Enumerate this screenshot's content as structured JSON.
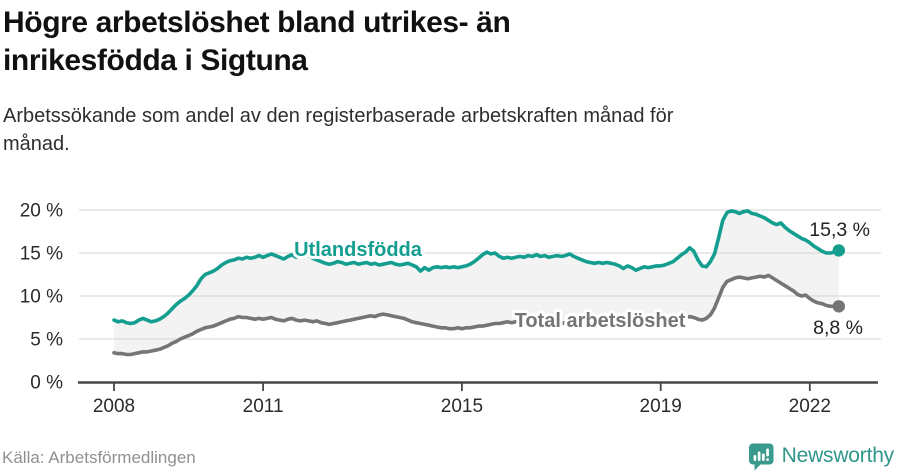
{
  "page": {
    "title": "Högre arbetslöshet bland utrikes- än inrikesfödda i Sigtuna",
    "title_lines": [
      "Högre arbetslöshet bland utrikes- än",
      "inrikesfödda i Sigtuna"
    ],
    "subtitle": "Arbetssökande som andel av den registerbaserade arbetskraften månad för månad.",
    "subtitle_lines": [
      "Arbetssökande som andel av den registerbaserade arbetskraften månad för",
      "månad."
    ],
    "source": "Källa: Arbetsförmedlingen",
    "brand": {
      "name": "Newsworthy",
      "icon": "newsworthy-bubble-barchart-icon",
      "color": "#2f968a"
    }
  },
  "chart_data": {
    "type": "line",
    "title": "Högre arbetslöshet bland utrikes- än inrikesfödda i Sigtuna",
    "subtitle": "Arbetssökande som andel av den registerbaserade arbetskraften månad för månad.",
    "source": "Källa: Arbetsförmedlingen",
    "x_unit": "monthly, decimal years",
    "x_start": 2008.0,
    "x_step": 0.08333,
    "xlim": [
      2007.3,
      2023.4
    ],
    "ylim": [
      0,
      21
    ],
    "grid": "horizontal",
    "xticks": [
      2008,
      2011,
      2015,
      2019,
      2022
    ],
    "xtick_labels": [
      "2008",
      "2011",
      "2015",
      "2019",
      "2022"
    ],
    "yticks": [
      0,
      5,
      10,
      15,
      20
    ],
    "ytick_labels": [
      "0 %",
      "5 %",
      "10 %",
      "15 %",
      "20 %"
    ],
    "band_fill_between_series": "#f3f3f3",
    "series": [
      {
        "name": "Utlandsfödda",
        "color": "#149e8f",
        "end_label": "15,3 %",
        "end_value": 15.3,
        "values": [
          7.2,
          7.0,
          7.1,
          6.9,
          6.8,
          6.9,
          7.2,
          7.4,
          7.2,
          7.0,
          7.1,
          7.3,
          7.6,
          8.0,
          8.5,
          9.0,
          9.4,
          9.7,
          10.1,
          10.6,
          11.2,
          12.0,
          12.5,
          12.7,
          12.9,
          13.2,
          13.6,
          13.9,
          14.1,
          14.2,
          14.4,
          14.3,
          14.5,
          14.4,
          14.5,
          14.7,
          14.5,
          14.7,
          14.9,
          14.7,
          14.5,
          14.3,
          14.6,
          14.8,
          14.5,
          14.7,
          14.9,
          14.7,
          14.4,
          14.2,
          14.0,
          13.8,
          13.7,
          13.8,
          14.0,
          13.9,
          13.7,
          13.8,
          13.9,
          13.7,
          13.8,
          13.9,
          13.7,
          13.8,
          13.6,
          13.7,
          13.8,
          13.9,
          13.7,
          13.6,
          13.7,
          13.8,
          13.6,
          13.4,
          12.9,
          13.3,
          13.0,
          13.3,
          13.4,
          13.3,
          13.4,
          13.3,
          13.4,
          13.3,
          13.4,
          13.5,
          13.7,
          14.0,
          14.4,
          14.8,
          15.1,
          14.9,
          15.0,
          14.6,
          14.4,
          14.5,
          14.4,
          14.5,
          14.6,
          14.5,
          14.7,
          14.6,
          14.8,
          14.6,
          14.7,
          14.5,
          14.6,
          14.7,
          14.6,
          14.7,
          14.9,
          14.6,
          14.4,
          14.2,
          14.0,
          13.9,
          13.8,
          13.9,
          13.8,
          13.9,
          13.8,
          13.7,
          13.5,
          13.2,
          13.5,
          13.3,
          13.0,
          13.2,
          13.4,
          13.3,
          13.4,
          13.5,
          13.5,
          13.6,
          13.8,
          14.0,
          14.4,
          14.8,
          15.1,
          15.6,
          15.2,
          14.2,
          13.5,
          13.4,
          14.0,
          14.9,
          16.8,
          18.8,
          19.7,
          19.9,
          19.8,
          19.6,
          19.8,
          19.9,
          19.6,
          19.5,
          19.3,
          19.1,
          18.8,
          18.5,
          18.3,
          18.5,
          18.0,
          17.6,
          17.3,
          17.0,
          16.7,
          16.5,
          16.2,
          15.8,
          15.5,
          15.2,
          15.0,
          15.0,
          15.1,
          15.3
        ]
      },
      {
        "name": "Total arbetslöshet",
        "color": "#757575",
        "end_label": "8,8 %",
        "end_value": 8.8,
        "values": [
          3.4,
          3.3,
          3.3,
          3.2,
          3.2,
          3.3,
          3.4,
          3.5,
          3.5,
          3.6,
          3.7,
          3.8,
          4.0,
          4.2,
          4.5,
          4.7,
          5.0,
          5.2,
          5.4,
          5.6,
          5.9,
          6.1,
          6.3,
          6.4,
          6.5,
          6.7,
          6.9,
          7.1,
          7.3,
          7.4,
          7.6,
          7.5,
          7.5,
          7.4,
          7.3,
          7.4,
          7.3,
          7.4,
          7.5,
          7.3,
          7.2,
          7.1,
          7.3,
          7.4,
          7.2,
          7.1,
          7.2,
          7.1,
          7.0,
          7.1,
          6.9,
          6.8,
          6.7,
          6.8,
          6.9,
          7.0,
          7.1,
          7.2,
          7.3,
          7.4,
          7.5,
          7.6,
          7.7,
          7.6,
          7.8,
          7.9,
          7.8,
          7.7,
          7.6,
          7.5,
          7.4,
          7.2,
          7.0,
          6.9,
          6.8,
          6.7,
          6.6,
          6.5,
          6.4,
          6.3,
          6.3,
          6.2,
          6.2,
          6.3,
          6.2,
          6.3,
          6.3,
          6.4,
          6.5,
          6.5,
          6.6,
          6.7,
          6.8,
          6.8,
          6.9,
          7.0,
          6.9,
          7.0,
          7.0,
          6.9,
          7.0,
          6.9,
          7.0,
          6.9,
          6.9,
          6.8,
          6.9,
          6.9,
          6.8,
          6.9,
          7.0,
          6.9,
          6.8,
          6.8,
          6.9,
          6.8,
          6.8,
          6.7,
          6.8,
          6.8,
          6.7,
          6.8,
          6.7,
          6.6,
          6.7,
          6.6,
          6.7,
          6.8,
          6.8,
          6.9,
          6.9,
          7.0,
          7.0,
          7.1,
          7.1,
          7.2,
          7.3,
          7.4,
          7.5,
          7.6,
          7.5,
          7.3,
          7.2,
          7.4,
          7.8,
          8.6,
          9.8,
          11.0,
          11.7,
          11.9,
          12.1,
          12.2,
          12.1,
          12.0,
          12.1,
          12.2,
          12.3,
          12.2,
          12.4,
          12.1,
          11.8,
          11.5,
          11.2,
          10.9,
          10.6,
          10.2,
          10.0,
          10.1,
          9.7,
          9.4,
          9.2,
          9.1,
          8.9,
          8.8,
          8.8,
          8.8
        ]
      }
    ],
    "legend_position": "inline-labels-on-lines"
  }
}
